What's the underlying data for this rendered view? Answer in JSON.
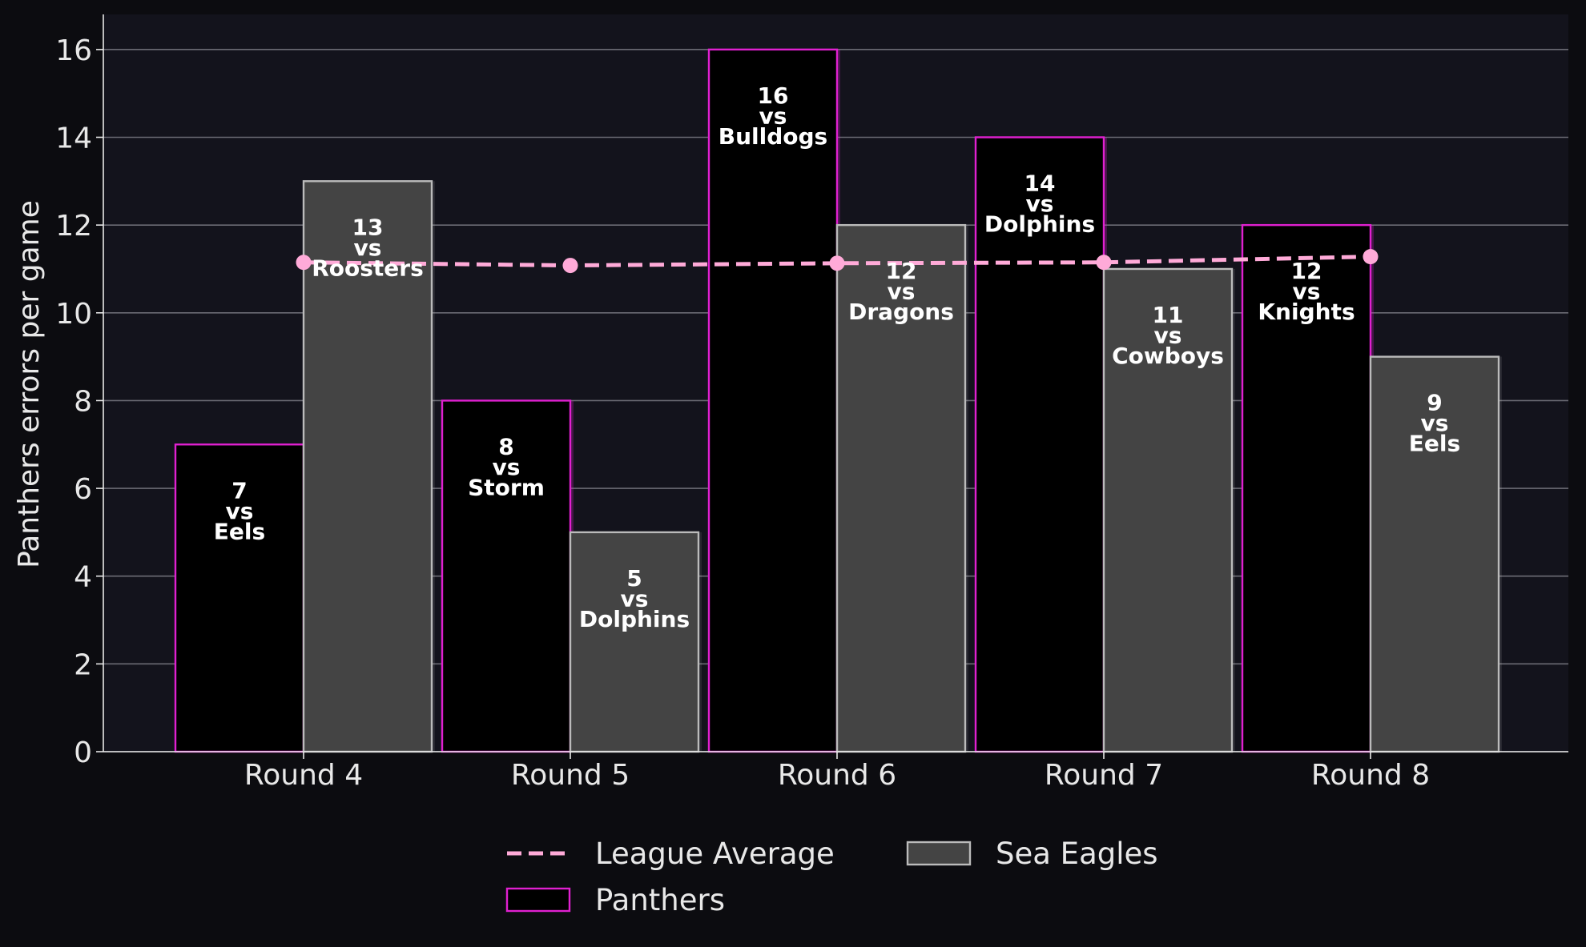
{
  "chart_data": {
    "type": "bar",
    "categories": [
      "Round 4",
      "Round 5",
      "Round 6",
      "Round 7",
      "Round 8"
    ],
    "ylabel": "Panthers errors per game",
    "xlabel": "",
    "ylim": [
      0,
      16.8
    ],
    "yticks": [
      0,
      2,
      4,
      6,
      8,
      10,
      12,
      14,
      16
    ],
    "grid": "horizontal",
    "legend_position": "bottom-center",
    "series": [
      {
        "name": "Panthers",
        "type": "bar",
        "values": [
          7,
          8,
          16,
          14,
          12
        ],
        "opponents": [
          "Eels",
          "Storm",
          "Bulldogs",
          "Dolphins",
          "Knights"
        ],
        "fill": "#000000",
        "edge": "#e020d0"
      },
      {
        "name": "Sea Eagles",
        "type": "bar",
        "values": [
          13,
          5,
          12,
          11,
          9
        ],
        "opponents": [
          "Roosters",
          "Dolphins",
          "Dragons",
          "Cowboys",
          "Eels"
        ],
        "fill": "#444444",
        "edge": "#bbbbbb"
      },
      {
        "name": "League Average",
        "type": "line",
        "style": "dashed",
        "values": [
          11.15,
          11.08,
          11.13,
          11.15,
          11.28
        ],
        "color": "#ffaad8"
      }
    ],
    "vs_word": "vs",
    "colors": {
      "page_background": "#0c0c10",
      "plot_background": "#13131c",
      "grid": "#6b6b74",
      "text": "#e8e8e8",
      "label_text": "#ffffff"
    }
  }
}
